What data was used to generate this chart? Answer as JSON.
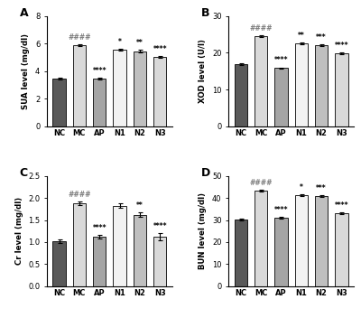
{
  "panels": [
    {
      "label": "A",
      "ylabel": "SUA level (mg/dl)",
      "ylim": [
        0,
        8
      ],
      "yticks": [
        0,
        2,
        4,
        6,
        8
      ],
      "categories": [
        "NC",
        "MC",
        "AP",
        "N1",
        "N2",
        "N3"
      ],
      "values": [
        3.45,
        5.9,
        3.45,
        5.55,
        5.45,
        5.05
      ],
      "errors": [
        0.07,
        0.07,
        0.09,
        0.09,
        0.07,
        0.07
      ],
      "annotations": [
        "",
        "####",
        "****",
        "*",
        "**",
        "****"
      ]
    },
    {
      "label": "B",
      "ylabel": "XOD level (U/l)",
      "ylim": [
        0,
        30
      ],
      "yticks": [
        0,
        10,
        20,
        30
      ],
      "categories": [
        "NC",
        "MC",
        "AP",
        "N1",
        "N2",
        "N3"
      ],
      "values": [
        17.0,
        24.5,
        15.8,
        22.5,
        22.0,
        19.9
      ],
      "errors": [
        0.25,
        0.22,
        0.22,
        0.28,
        0.28,
        0.22
      ],
      "annotations": [
        "",
        "####",
        "****",
        "**",
        "***",
        "****"
      ]
    },
    {
      "label": "C",
      "ylabel": "Cr level (mg/dl)",
      "ylim": [
        0,
        2.5
      ],
      "yticks": [
        0.0,
        0.5,
        1.0,
        1.5,
        2.0,
        2.5
      ],
      "categories": [
        "NC",
        "MC",
        "AP",
        "N1",
        "N2",
        "N3"
      ],
      "values": [
        1.02,
        1.88,
        1.12,
        1.82,
        1.62,
        1.12
      ],
      "errors": [
        0.05,
        0.04,
        0.04,
        0.05,
        0.05,
        0.08
      ],
      "annotations": [
        "",
        "####",
        "****",
        "",
        "**",
        "****"
      ]
    },
    {
      "label": "D",
      "ylabel": "BUN level (mg/dl)",
      "ylim": [
        0,
        50
      ],
      "yticks": [
        0,
        10,
        20,
        30,
        40,
        50
      ],
      "categories": [
        "NC",
        "MC",
        "AP",
        "N1",
        "N2",
        "N3"
      ],
      "values": [
        30.2,
        43.2,
        31.0,
        41.3,
        41.0,
        33.0
      ],
      "errors": [
        0.4,
        0.4,
        0.4,
        0.5,
        0.4,
        0.5
      ],
      "annotations": [
        "",
        "####",
        "****",
        "*",
        "***",
        "****"
      ]
    }
  ],
  "bar_colors": [
    "#595959",
    "#d9d9d9",
    "#a5a5a5",
    "#f2f2f2",
    "#bfbfbf",
    "#d9d9d9"
  ],
  "hash_color": "#808080",
  "star_color": "#000000",
  "edgecolor": "#000000",
  "background": "#ffffff",
  "bar_width": 0.65
}
